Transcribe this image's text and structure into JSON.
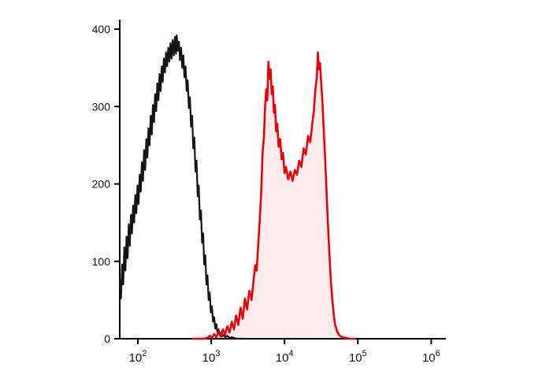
{
  "page": {
    "background": "#ffffff"
  },
  "chart_data": {
    "type": "line",
    "subtype": "flow-cytometry-histogram-overlay",
    "title": "",
    "xlabel": "",
    "ylabel": "",
    "x_scale": "log10",
    "x_range_log10": [
      1.753,
      6.2
    ],
    "ylim": [
      0,
      400
    ],
    "grid": false,
    "legend": "none",
    "axis_color": "#000000",
    "x_ticks": [
      {
        "log10": 2,
        "base": "10",
        "exponent": "2"
      },
      {
        "log10": 3,
        "base": "10",
        "exponent": "3"
      },
      {
        "log10": 4,
        "base": "10",
        "exponent": "4"
      },
      {
        "log10": 5,
        "base": "10",
        "exponent": "5"
      },
      {
        "log10": 6,
        "base": "10",
        "exponent": "6"
      }
    ],
    "y_ticks": [
      {
        "value": 0,
        "label": "0"
      },
      {
        "value": 100,
        "label": "100"
      },
      {
        "value": 200,
        "label": "200"
      },
      {
        "value": 300,
        "label": "300"
      },
      {
        "value": 400,
        "label": "400"
      }
    ],
    "series": [
      {
        "name": "black-outline-histogram",
        "stroke": "#141414",
        "stroke_width": 2.2,
        "fill": "none",
        "peak": {
          "log10x": 2.53,
          "count": 392
        },
        "points_log10x_count": [
          [
            1.753,
            78
          ],
          [
            1.77,
            52
          ],
          [
            1.785,
            96
          ],
          [
            1.8,
            70
          ],
          [
            1.815,
            118
          ],
          [
            1.83,
            88
          ],
          [
            1.845,
            132
          ],
          [
            1.86,
            104
          ],
          [
            1.875,
            148
          ],
          [
            1.89,
            120
          ],
          [
            1.905,
            160
          ],
          [
            1.92,
            136
          ],
          [
            1.935,
            172
          ],
          [
            1.95,
            150
          ],
          [
            1.965,
            186
          ],
          [
            1.98,
            162
          ],
          [
            1.995,
            198
          ],
          [
            2.01,
            174
          ],
          [
            2.025,
            212
          ],
          [
            2.04,
            190
          ],
          [
            2.055,
            228
          ],
          [
            2.07,
            204
          ],
          [
            2.085,
            244
          ],
          [
            2.1,
            218
          ],
          [
            2.115,
            258
          ],
          [
            2.13,
            234
          ],
          [
            2.145,
            272
          ],
          [
            2.16,
            250
          ],
          [
            2.175,
            288
          ],
          [
            2.19,
            264
          ],
          [
            2.205,
            302
          ],
          [
            2.22,
            280
          ],
          [
            2.235,
            316
          ],
          [
            2.25,
            294
          ],
          [
            2.265,
            330
          ],
          [
            2.28,
            308
          ],
          [
            2.295,
            342
          ],
          [
            2.31,
            320
          ],
          [
            2.325,
            352
          ],
          [
            2.34,
            332
          ],
          [
            2.355,
            362
          ],
          [
            2.37,
            344
          ],
          [
            2.385,
            370
          ],
          [
            2.4,
            352
          ],
          [
            2.415,
            376
          ],
          [
            2.43,
            358
          ],
          [
            2.445,
            382
          ],
          [
            2.46,
            362
          ],
          [
            2.475,
            386
          ],
          [
            2.49,
            366
          ],
          [
            2.505,
            390
          ],
          [
            2.52,
            368
          ],
          [
            2.53,
            392
          ],
          [
            2.545,
            372
          ],
          [
            2.56,
            384
          ],
          [
            2.575,
            360
          ],
          [
            2.59,
            376
          ],
          [
            2.605,
            350
          ],
          [
            2.62,
            366
          ],
          [
            2.635,
            338
          ],
          [
            2.65,
            352
          ],
          [
            2.665,
            320
          ],
          [
            2.68,
            334
          ],
          [
            2.695,
            298
          ],
          [
            2.71,
            312
          ],
          [
            2.725,
            274
          ],
          [
            2.74,
            288
          ],
          [
            2.755,
            246
          ],
          [
            2.77,
            260
          ],
          [
            2.785,
            216
          ],
          [
            2.8,
            230
          ],
          [
            2.815,
            184
          ],
          [
            2.83,
            198
          ],
          [
            2.845,
            154
          ],
          [
            2.86,
            166
          ],
          [
            2.875,
            124
          ],
          [
            2.89,
            136
          ],
          [
            2.905,
            96
          ],
          [
            2.92,
            108
          ],
          [
            2.935,
            70
          ],
          [
            2.95,
            82
          ],
          [
            2.965,
            50
          ],
          [
            2.98,
            60
          ],
          [
            2.995,
            34
          ],
          [
            3.01,
            42
          ],
          [
            3.025,
            22
          ],
          [
            3.04,
            28
          ],
          [
            3.055,
            13
          ],
          [
            3.07,
            19
          ],
          [
            3.085,
            8
          ],
          [
            3.1,
            12
          ],
          [
            3.115,
            5
          ],
          [
            3.13,
            8
          ],
          [
            3.145,
            3
          ],
          [
            3.16,
            5
          ],
          [
            3.19,
            2
          ],
          [
            3.22,
            4
          ],
          [
            3.25,
            1
          ],
          [
            3.28,
            2
          ],
          [
            3.31,
            1
          ],
          [
            3.35,
            0
          ],
          [
            3.45,
            0
          ]
        ]
      },
      {
        "name": "red-filled-histogram",
        "stroke": "#e8000b",
        "stroke_width": 2.6,
        "fill": "#fdeceb",
        "peaks": [
          {
            "log10x": 3.78,
            "count": 358
          },
          {
            "log10x": 4.455,
            "count": 370
          }
        ],
        "valley": {
          "log10x": 4.11,
          "count": 204
        },
        "points_log10x_count": [
          [
            2.75,
            0
          ],
          [
            2.9,
            0
          ],
          [
            2.95,
            1
          ],
          [
            2.98,
            4
          ],
          [
            3.01,
            1
          ],
          [
            3.04,
            6
          ],
          [
            3.07,
            2
          ],
          [
            3.1,
            9
          ],
          [
            3.13,
            3
          ],
          [
            3.16,
            12
          ],
          [
            3.19,
            5
          ],
          [
            3.22,
            16
          ],
          [
            3.25,
            8
          ],
          [
            3.28,
            22
          ],
          [
            3.31,
            12
          ],
          [
            3.34,
            30
          ],
          [
            3.37,
            18
          ],
          [
            3.4,
            40
          ],
          [
            3.43,
            26
          ],
          [
            3.46,
            52
          ],
          [
            3.49,
            38
          ],
          [
            3.52,
            62
          ],
          [
            3.55,
            50
          ],
          [
            3.58,
            78
          ],
          [
            3.6,
            95
          ],
          [
            3.62,
            88
          ],
          [
            3.64,
            120
          ],
          [
            3.66,
            150
          ],
          [
            3.68,
            185
          ],
          [
            3.7,
            240
          ],
          [
            3.72,
            262
          ],
          [
            3.735,
            300
          ],
          [
            3.75,
            322
          ],
          [
            3.765,
            308
          ],
          [
            3.78,
            358
          ],
          [
            3.795,
            336
          ],
          [
            3.81,
            348
          ],
          [
            3.825,
            316
          ],
          [
            3.84,
            326
          ],
          [
            3.855,
            292
          ],
          [
            3.87,
            302
          ],
          [
            3.885,
            268
          ],
          [
            3.9,
            278
          ],
          [
            3.92,
            248
          ],
          [
            3.94,
            258
          ],
          [
            3.96,
            232
          ],
          [
            3.98,
            240
          ],
          [
            4.0,
            214
          ],
          [
            4.02,
            222
          ],
          [
            4.05,
            206
          ],
          [
            4.08,
            216
          ],
          [
            4.11,
            204
          ],
          [
            4.14,
            218
          ],
          [
            4.17,
            212
          ],
          [
            4.2,
            230
          ],
          [
            4.23,
            222
          ],
          [
            4.26,
            246
          ],
          [
            4.29,
            238
          ],
          [
            4.32,
            262
          ],
          [
            4.35,
            254
          ],
          [
            4.38,
            280
          ],
          [
            4.4,
            294
          ],
          [
            4.42,
            322
          ],
          [
            4.44,
            338
          ],
          [
            4.455,
            370
          ],
          [
            4.47,
            348
          ],
          [
            4.485,
            356
          ],
          [
            4.5,
            330
          ],
          [
            4.515,
            310
          ],
          [
            4.53,
            280
          ],
          [
            4.55,
            240
          ],
          [
            4.57,
            196
          ],
          [
            4.59,
            152
          ],
          [
            4.61,
            112
          ],
          [
            4.63,
            78
          ],
          [
            4.65,
            52
          ],
          [
            4.67,
            32
          ],
          [
            4.69,
            18
          ],
          [
            4.72,
            9
          ],
          [
            4.75,
            4
          ],
          [
            4.79,
            2
          ],
          [
            4.84,
            1
          ],
          [
            4.88,
            0
          ],
          [
            4.95,
            0
          ]
        ]
      }
    ]
  }
}
